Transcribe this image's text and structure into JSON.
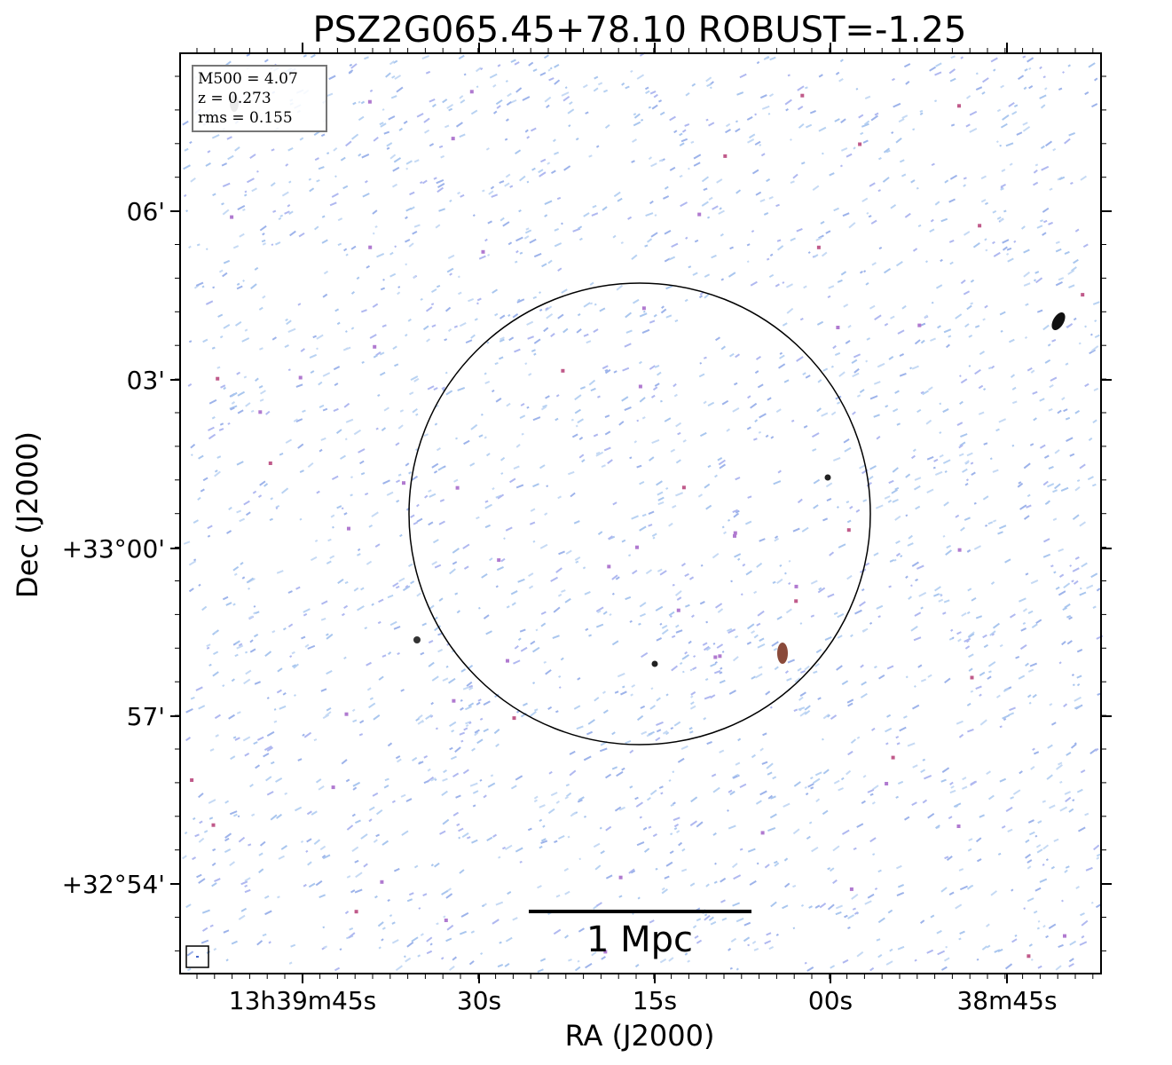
{
  "title": "PSZ2G065.45+78.10 ROBUST=-1.25",
  "x_axis": {
    "label": "RA (J2000)",
    "ticks": [
      "13h39m45s",
      "30s",
      "15s",
      "00s",
      "38m45s"
    ]
  },
  "y_axis": {
    "label": "Dec (J2000)",
    "ticks": [
      "06'",
      "03'",
      "+33°00'",
      "57'",
      "+32°54'"
    ]
  },
  "info_box": [
    "M500 = 4.07",
    "z = 0.273",
    "rms = 0.155"
  ],
  "scale_bar": "1 Mpc"
}
